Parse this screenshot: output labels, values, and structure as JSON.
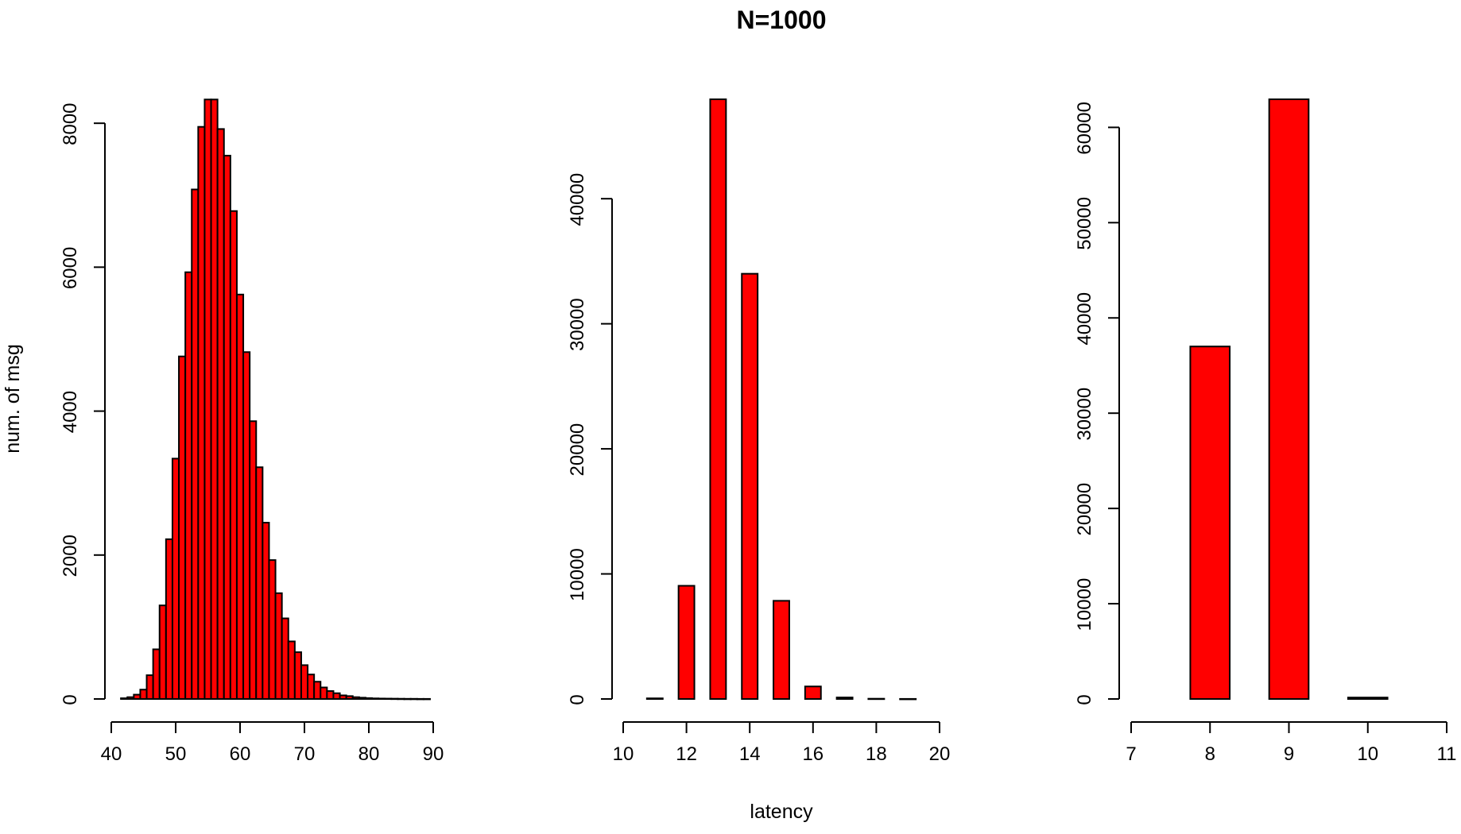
{
  "figure": {
    "title": "N=1000",
    "xlabel": "latency",
    "ylabel": "num. of msg"
  },
  "chart_data": [
    {
      "type": "bar",
      "bar_color": "#ff0000",
      "border_color": "#000000",
      "bar_width": 1,
      "x": [
        42,
        43,
        44,
        45,
        46,
        47,
        48,
        49,
        50,
        51,
        52,
        53,
        54,
        55,
        56,
        57,
        58,
        59,
        60,
        61,
        62,
        63,
        64,
        65,
        66,
        67,
        68,
        69,
        70,
        71,
        72,
        73,
        74,
        75,
        76,
        77,
        78,
        79,
        80,
        81,
        82,
        83,
        84,
        85,
        86,
        87,
        88,
        89
      ],
      "values": [
        10,
        25,
        60,
        130,
        330,
        690,
        1300,
        2220,
        3340,
        4760,
        5930,
        7080,
        7950,
        8330,
        8330,
        7920,
        7550,
        6780,
        5620,
        4820,
        3860,
        3220,
        2450,
        1930,
        1470,
        1120,
        800,
        650,
        470,
        340,
        240,
        160,
        110,
        80,
        50,
        40,
        25,
        18,
        12,
        8,
        6,
        5,
        4,
        3,
        2,
        2,
        1,
        1
      ],
      "xlim": [
        40,
        90
      ],
      "ylim": [
        0,
        8333
      ],
      "xticks": [
        "40",
        "50",
        "60",
        "70",
        "80",
        "90"
      ],
      "yticks": [
        "0",
        "2000",
        "4000",
        "6000",
        "8000"
      ]
    },
    {
      "type": "bar",
      "bar_color": "#ff0000",
      "border_color": "#000000",
      "bar_width": 0.5,
      "x": [
        11,
        12,
        13,
        14,
        15,
        16,
        17,
        18,
        19
      ],
      "values": [
        50,
        9050,
        47950,
        34000,
        7850,
        1000,
        120,
        20,
        5
      ],
      "xlim": [
        10,
        20
      ],
      "ylim": [
        0,
        47950
      ],
      "xticks": [
        "10",
        "12",
        "14",
        "16",
        "18",
        "20"
      ],
      "yticks": [
        "0",
        "10000",
        "20000",
        "30000",
        "40000"
      ]
    },
    {
      "type": "bar",
      "bar_color": "#ff0000",
      "border_color": "#000000",
      "bar_width": 0.5,
      "x": [
        8,
        9,
        10
      ],
      "values": [
        37000,
        62950,
        150
      ],
      "xlim": [
        7,
        11
      ],
      "ylim": [
        0,
        62950
      ],
      "xticks": [
        "7",
        "8",
        "9",
        "10",
        "11"
      ],
      "yticks": [
        "0",
        "10000",
        "20000",
        "30000",
        "40000",
        "50000",
        "60000"
      ]
    }
  ]
}
